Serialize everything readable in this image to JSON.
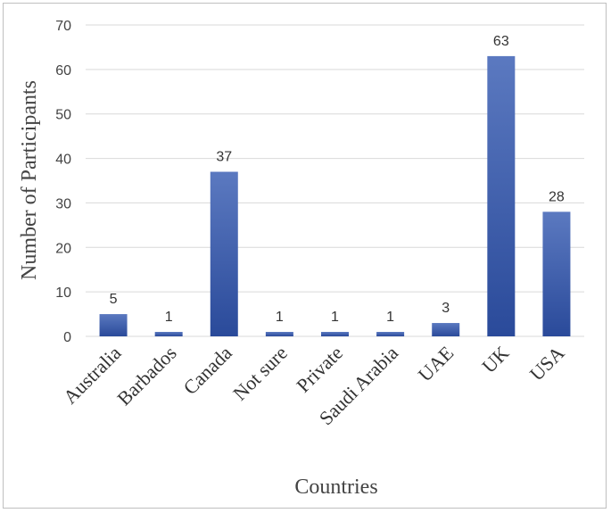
{
  "chart_data": {
    "type": "bar",
    "categories": [
      "Australia",
      "Barbados",
      "Canada",
      "Not sure",
      "Private",
      "Saudi Arabia",
      "UAE",
      "UK",
      "USA"
    ],
    "values": [
      5,
      1,
      37,
      1,
      1,
      1,
      3,
      63,
      28
    ],
    "data_labels": [
      "5",
      "1",
      "37",
      "1",
      "1",
      "1",
      "3",
      "63",
      "28"
    ],
    "xlabel": "Countries",
    "ylabel": "Number of Participants",
    "ylim": [
      0,
      70
    ],
    "yticks": [
      0,
      10,
      20,
      30,
      40,
      50,
      60,
      70
    ],
    "grid": true,
    "colors": {
      "bar_top": "#5b79c0",
      "bar_bottom": "#2a4a9a",
      "grid": "#d9d9d9"
    }
  }
}
